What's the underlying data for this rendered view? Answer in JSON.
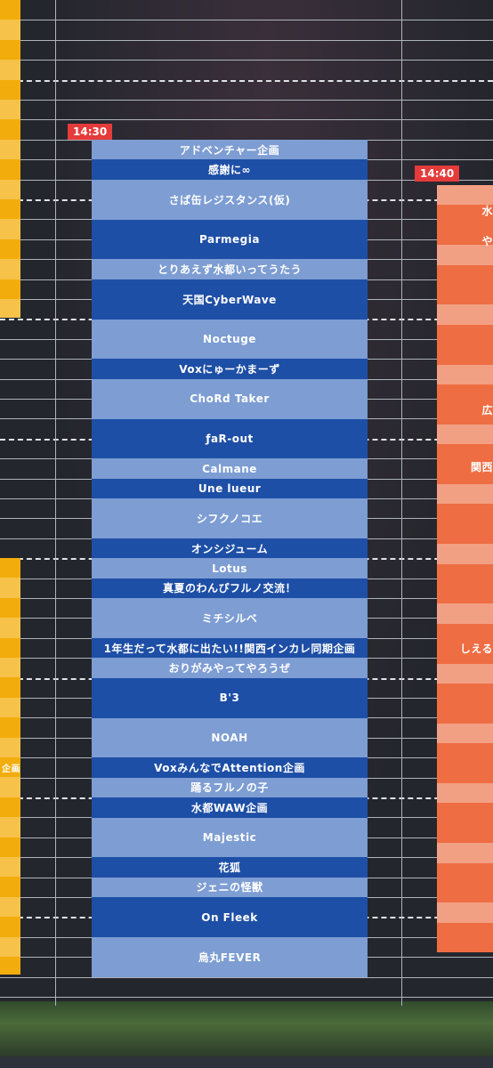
{
  "time_badges": [
    "14:30",
    "14:40"
  ],
  "center_column": {
    "blocks": [
      "アドベンチャー企画",
      "感謝に∞",
      "さば缶レジスタンス(仮)",
      "Parmegia",
      "とりあえず水都いってうたう",
      "天国CyberWave",
      "Noctuge",
      "Voxにゅーかまーず",
      "ChoRd Taker",
      "ƒaR-out",
      "Calmane",
      "Une lueur",
      "シフクノコエ",
      "オンシジューム",
      "Lotus",
      "真夏のわんぴフルノ交流！",
      "ミチシルベ",
      "1年生だって水都に出たい!!関西インカレ同期企画",
      "おりがみやってやろうぜ",
      "B'3",
      "NOAH",
      "VoxみんなでAttention企画",
      "踊るフルノの子",
      "水都WAW企画",
      "Majestic",
      "花狐",
      "ジェニの怪獣",
      "On Fleek",
      "烏丸FEVER"
    ]
  },
  "right_column": {
    "labels": [
      "水",
      "や",
      "広",
      "関西",
      "しえる"
    ]
  },
  "left_column": {
    "labels": [
      "企画"
    ]
  }
}
